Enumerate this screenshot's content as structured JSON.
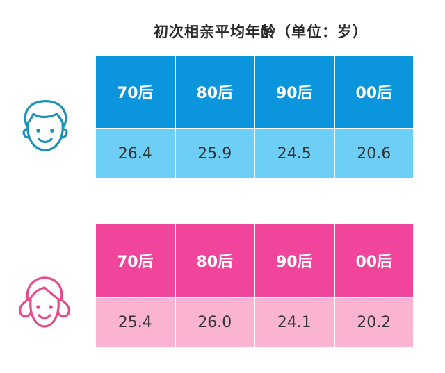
{
  "title": "初次相亲平均年龄（单位：岁）",
  "colors": {
    "male_header": "#0a95dd",
    "male_values": "#6dcff6",
    "male_icon": "#1a93b8",
    "female_header": "#f0459b",
    "female_values": "#fbb3d2",
    "female_icon": "#e64a8a"
  },
  "icons": {
    "male": "boy-face-icon",
    "female": "girl-face-icon"
  },
  "chart_data": {
    "type": "table",
    "categories": [
      "70后",
      "80后",
      "90后",
      "00后"
    ],
    "series": [
      {
        "values": [
          26.4,
          25.9,
          24.5,
          20.6
        ]
      },
      {
        "values": [
          25.4,
          26.0,
          24.1,
          20.2
        ]
      }
    ],
    "display": {
      "male": [
        "26.4",
        "25.9",
        "24.5",
        "20.6"
      ],
      "female": [
        "25.4",
        "26.0",
        "24.1",
        "20.2"
      ]
    }
  }
}
